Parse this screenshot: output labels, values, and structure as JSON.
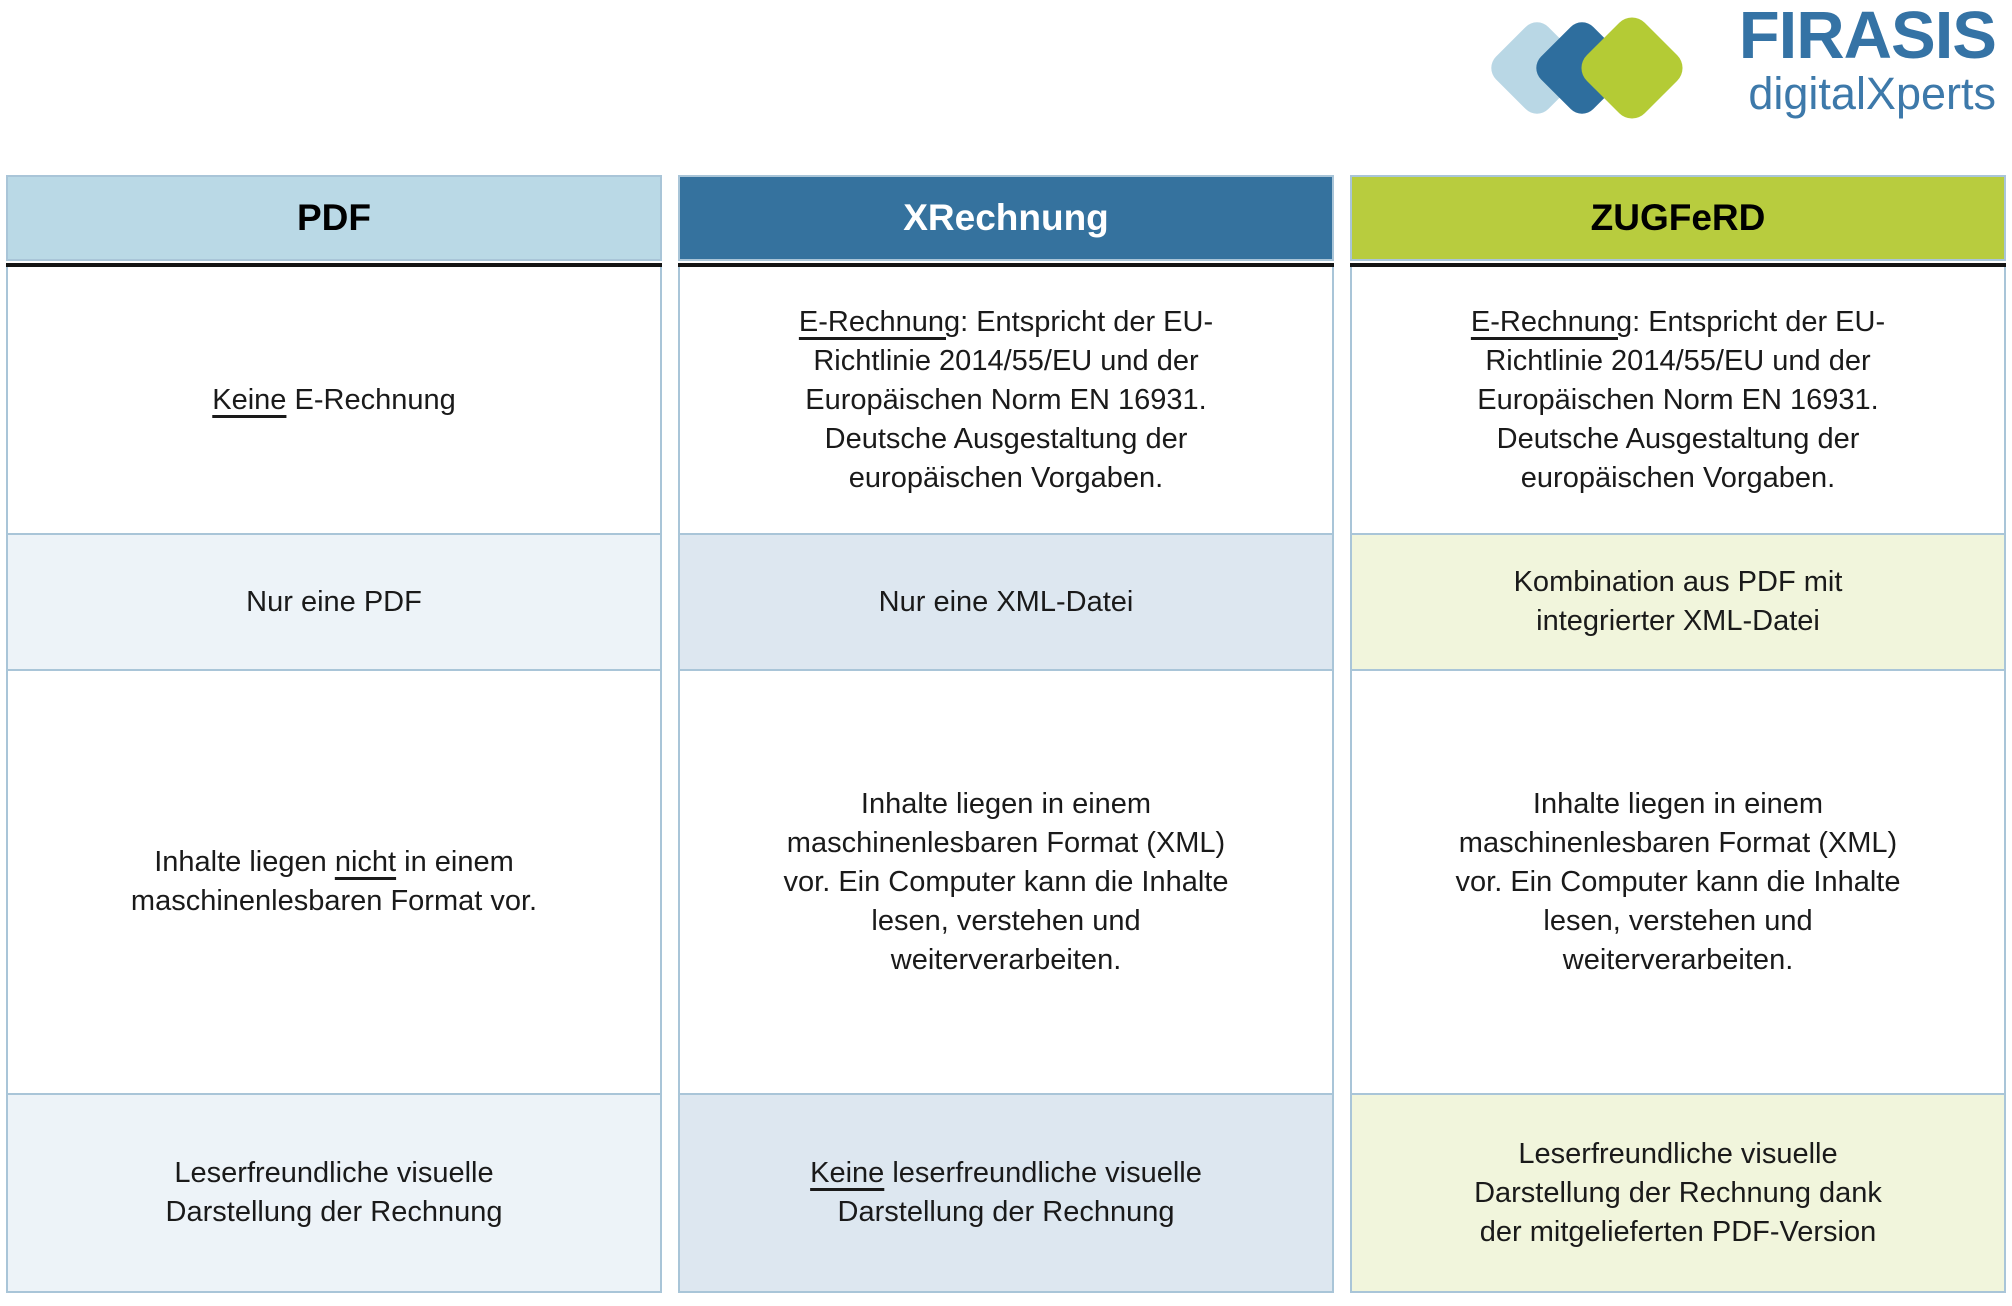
{
  "logo": {
    "title": "FIRASIS",
    "subtitle": "digitalXperts",
    "title_color": "#3573a5",
    "subtitle_color": "#3d79aa",
    "diamond_colors": {
      "light_blue": "#b9d7e5",
      "dark_blue": "#2e6e9e",
      "green": "#b4cb35"
    }
  },
  "table": {
    "border_color": "#a9c5d8",
    "header_divider_color": "#141414",
    "columns": [
      {
        "id": "pdf",
        "header": {
          "label": "PDF",
          "bg": "#bad9e6",
          "color": "#000000"
        },
        "tint": "#edf3f8",
        "cells": [
          {
            "tinted": false,
            "parts": [
              {
                "text": "Keine",
                "underline": true
              },
              {
                "text": " E-Rechnung"
              }
            ]
          },
          {
            "tinted": true,
            "parts": [
              {
                "text": "Nur eine PDF"
              }
            ]
          },
          {
            "tinted": false,
            "parts": [
              {
                "text": "Inhalte liegen "
              },
              {
                "text": "nicht",
                "underline": true
              },
              {
                "text": " in einem maschinenlesbaren Format vor."
              }
            ]
          },
          {
            "tinted": true,
            "parts": [
              {
                "text": "Leserfreundliche visuelle Darstellung der Rechnung"
              }
            ]
          }
        ]
      },
      {
        "id": "xrechnung",
        "header": {
          "label": "XRechnung",
          "bg": "#35729e",
          "color": "#ffffff"
        },
        "tint": "#dde7f0",
        "cells": [
          {
            "tinted": false,
            "parts": [
              {
                "text": "E-Rechnung",
                "underline": true
              },
              {
                "text": ": Entspricht der EU-Richtlinie 2014/55/EU und der Europäischen Norm EN 16931. Deutsche Ausgestaltung der europäischen Vorgaben."
              }
            ]
          },
          {
            "tinted": true,
            "parts": [
              {
                "text": "Nur eine XML-Datei"
              }
            ]
          },
          {
            "tinted": false,
            "parts": [
              {
                "text": "Inhalte liegen in einem maschinenlesbaren Format (XML) vor. Ein Computer kann die Inhalte lesen, verstehen und weiterverarbeiten."
              }
            ]
          },
          {
            "tinted": true,
            "parts": [
              {
                "text": "Keine",
                "underline": true
              },
              {
                "text": " leserfreundliche visuelle Darstellung der Rechnung"
              }
            ]
          }
        ]
      },
      {
        "id": "zugferd",
        "header": {
          "label": "ZUGFeRD",
          "bg": "#b8cc3e",
          "color": "#000000"
        },
        "tint": "#f1f5dc",
        "cells": [
          {
            "tinted": false,
            "parts": [
              {
                "text": "E-Rechnung",
                "underline": true
              },
              {
                "text": ": Entspricht der EU-Richtlinie 2014/55/EU und der Europäischen Norm EN 16931. Deutsche Ausgestaltung der europäischen Vorgaben."
              }
            ]
          },
          {
            "tinted": true,
            "parts": [
              {
                "text": "Kombination aus PDF mit integrierter XML-Datei"
              }
            ]
          },
          {
            "tinted": false,
            "parts": [
              {
                "text": "Inhalte liegen in einem maschinenlesbaren Format (XML) vor. Ein Computer kann die Inhalte lesen, verstehen und weiterverarbeiten."
              }
            ]
          },
          {
            "tinted": true,
            "parts": [
              {
                "text": "Leserfreundliche visuelle Darstellung der Rechnung dank der mitgelieferten PDF-Version"
              }
            ]
          }
        ]
      }
    ]
  }
}
